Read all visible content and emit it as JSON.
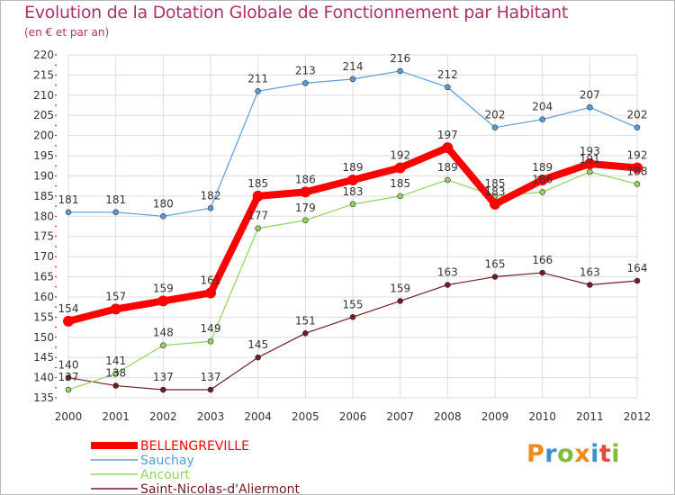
{
  "title": "Evolution de la Dotation Globale de Fonctionnement par Habitant",
  "subtitle": "(en € et par an)",
  "logo": {
    "text": "Proxiti",
    "letters": [
      {
        "ch": "P",
        "color": "#f18a1d"
      },
      {
        "ch": "r",
        "color": "#3e8fd0"
      },
      {
        "ch": "o",
        "color": "#7cbd3b"
      },
      {
        "ch": "x",
        "color": "#f18a1d"
      },
      {
        "ch": "i",
        "color": "#3e8fd0"
      },
      {
        "ch": "t",
        "color": "#e44a3c"
      },
      {
        "ch": "i",
        "color": "#7cbd3b"
      }
    ]
  },
  "colors": {
    "title": "#b0306a",
    "grid": "#dddddd",
    "axis_mark": "#cc0000"
  },
  "chart_data": {
    "type": "line",
    "x": [
      2000,
      2001,
      2002,
      2003,
      2004,
      2005,
      2006,
      2007,
      2008,
      2009,
      2010,
      2011,
      2012
    ],
    "ylim": [
      135,
      220
    ],
    "yticks": [
      135,
      140,
      145,
      150,
      155,
      160,
      165,
      170,
      175,
      180,
      185,
      190,
      195,
      200,
      205,
      210,
      215,
      220
    ],
    "grid": true,
    "xlabel": "",
    "ylabel": "",
    "legend_position": "bottom-left",
    "series": [
      {
        "name": "BELLENGREVILLE",
        "color": "#ff0000",
        "values": [
          154,
          157,
          159,
          161,
          185,
          186,
          189,
          192,
          197,
          183,
          189,
          193,
          192
        ]
      },
      {
        "name": "Sauchay",
        "color": "#5b9bd5",
        "values": [
          181,
          181,
          180,
          182,
          211,
          213,
          214,
          216,
          212,
          202,
          204,
          207,
          202
        ]
      },
      {
        "name": "Ancourt",
        "color": "#8fd35e",
        "values": [
          137,
          141,
          148,
          149,
          177,
          179,
          183,
          185,
          189,
          185,
          186,
          191,
          188
        ]
      },
      {
        "name": "Saint-Nicolas-d'Aliermont",
        "color": "#6e1e22",
        "values": [
          140,
          138,
          137,
          137,
          145,
          151,
          155,
          159,
          163,
          165,
          166,
          163,
          164
        ]
      }
    ]
  }
}
